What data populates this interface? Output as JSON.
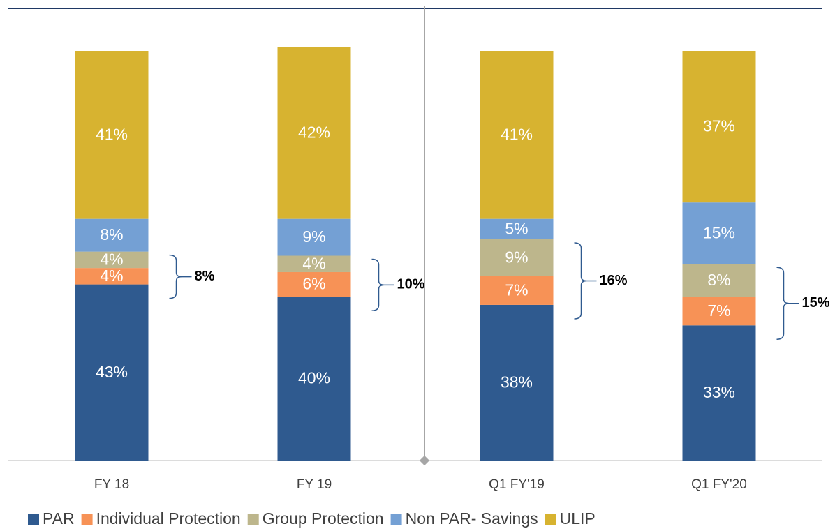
{
  "chart_data": {
    "type": "stacked_bar",
    "categories": [
      "FY 18",
      "FY 19",
      "Q1 FY'19",
      "Q1 FY'20"
    ],
    "series": [
      {
        "name": "PAR",
        "color": "#2f5a8f",
        "values": [
          43,
          40,
          38,
          33
        ],
        "value_labels": [
          "43%",
          "40%",
          "38%",
          "33%"
        ]
      },
      {
        "name": "Individual Protection",
        "color": "#f79256",
        "values": [
          4,
          6,
          7,
          7
        ],
        "value_labels": [
          "4%",
          "6%",
          "7%",
          "7%"
        ]
      },
      {
        "name": "Group Protection",
        "color": "#bdb68c",
        "values": [
          4,
          4,
          9,
          8
        ],
        "value_labels": [
          "4%",
          "4%",
          "9%",
          "8%"
        ]
      },
      {
        "name": "Non PAR- Savings",
        "color": "#74a0d4",
        "values": [
          8,
          9,
          5,
          15
        ],
        "value_labels": [
          "8%",
          "9%",
          "5%",
          "15%"
        ]
      },
      {
        "name": "ULIP",
        "color": "#d7b330",
        "values": [
          41,
          42,
          41,
          37
        ],
        "value_labels": [
          "41%",
          "42%",
          "41%",
          "37%"
        ]
      }
    ],
    "annotations": [
      "8%",
      "10%",
      "16%",
      "15%"
    ],
    "legend": "bottom"
  }
}
